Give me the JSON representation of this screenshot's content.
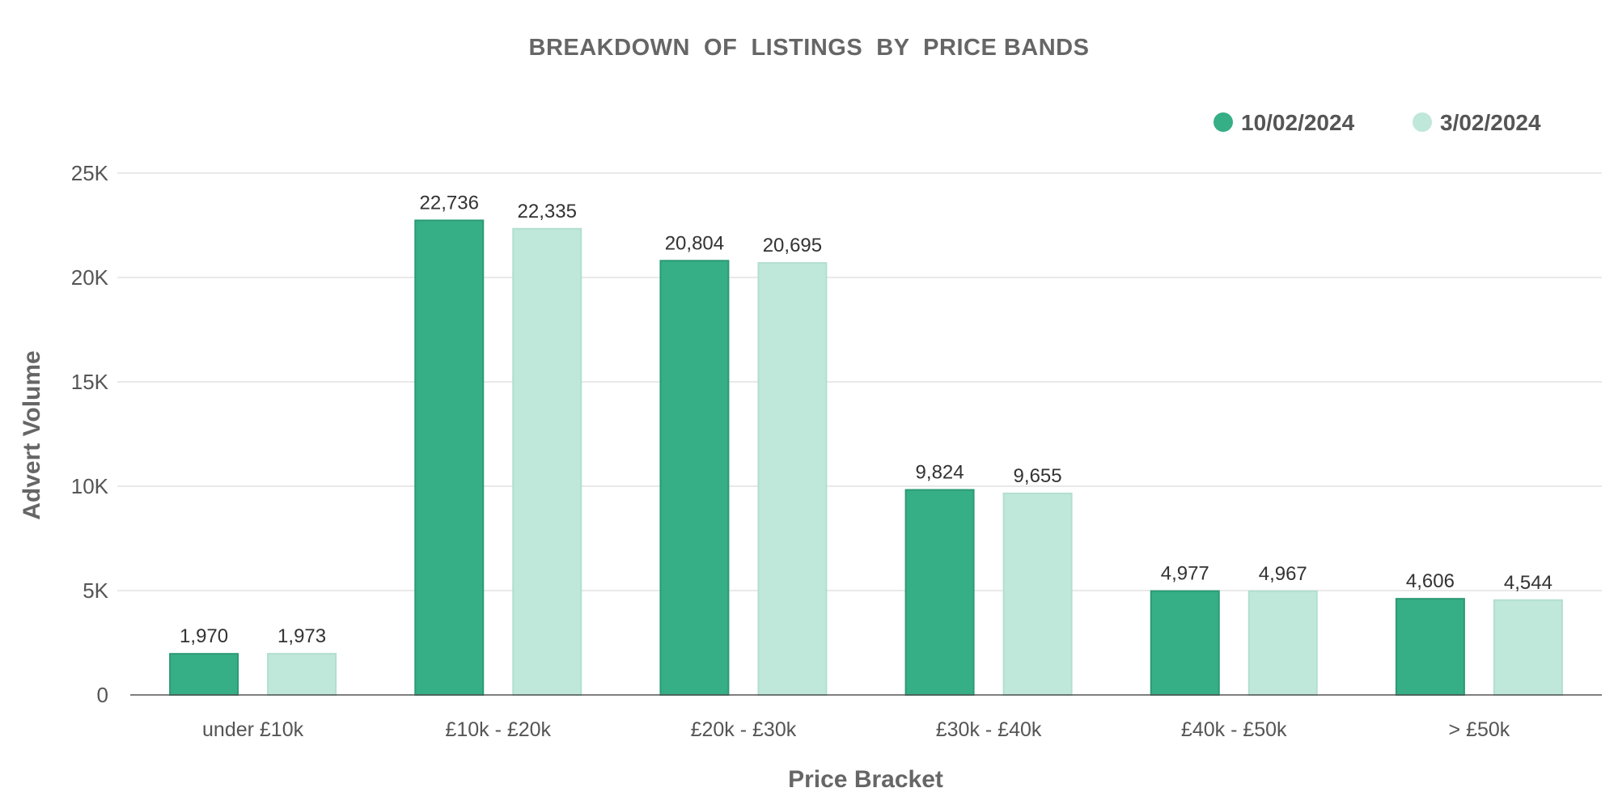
{
  "chart_data": {
    "type": "bar",
    "title": "BREAKDOWN  OF  LISTINGS  BY  PRICE BANDS",
    "xlabel": "Price Bracket",
    "ylabel": "Advert Volume",
    "categories": [
      "under £10k",
      "£10k - £20k",
      "£20k - £30k",
      "£30k - £40k",
      "£40k - £50k",
      "> £50k"
    ],
    "series": [
      {
        "name": "10/02/2024",
        "color": "#36ae86",
        "values": [
          1970,
          22736,
          20804,
          9824,
          4977,
          4606
        ]
      },
      {
        "name": "3/02/2024",
        "color": "#bfe7da",
        "values": [
          1973,
          22335,
          20695,
          9655,
          4967,
          4544
        ]
      }
    ],
    "ylim": [
      0,
      25000
    ],
    "yticks": [
      0,
      5000,
      10000,
      15000,
      20000,
      25000
    ],
    "ytick_labels": [
      "0",
      "5K",
      "10K",
      "15K",
      "20K",
      "25K"
    ],
    "grid": true,
    "legend_position": "top-right",
    "data_labels": true
  }
}
